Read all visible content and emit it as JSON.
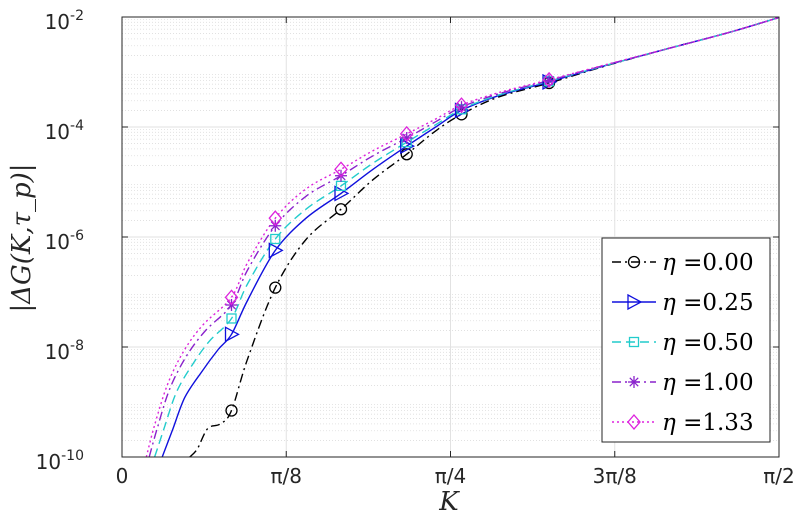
{
  "chart_data": {
    "type": "line",
    "ylabel": "|ΔG(K,τ_p)|",
    "xlabel": "K",
    "x_scale": "linear",
    "y_scale": "log",
    "xlim": [
      0,
      1.5708
    ],
    "ylim": [
      1e-10,
      0.01
    ],
    "grid": true,
    "minor_grid_y": true,
    "legend_position": "lower-right",
    "x_ticks": [
      {
        "value": 0,
        "label": "0"
      },
      {
        "value": 0.3927,
        "label": "π/8"
      },
      {
        "value": 0.7854,
        "label": "π/4"
      },
      {
        "value": 1.1781,
        "label": "3π/8"
      },
      {
        "value": 1.5708,
        "label": "π/2"
      }
    ],
    "y_ticks": [
      {
        "value": 1e-10,
        "base": "10",
        "exp": "-10"
      },
      {
        "value": 1e-08,
        "base": "10",
        "exp": "-8"
      },
      {
        "value": 1e-06,
        "base": "10",
        "exp": "-6"
      },
      {
        "value": 0.0001,
        "base": "10",
        "exp": "-4"
      },
      {
        "value": 0.01,
        "base": "10",
        "exp": "-2"
      }
    ],
    "series": [
      {
        "name": "η =0.00",
        "eta_label": "η",
        "value_label": "=0.00",
        "color": "#000000",
        "dash": "9,4,2,4",
        "marker": "circle",
        "marker_x": [
          0.2618,
          0.3665,
          0.5236,
          0.6807,
          0.8117,
          1.021
        ],
        "marker_y": [
          7e-10,
          1.2e-07,
          3.2e-06,
          3.2e-05,
          0.00017,
          0.00063
        ],
        "curve_x": [
          0.162,
          0.18,
          0.205,
          0.235,
          0.2618,
          0.3,
          0.3665,
          0.44,
          0.5236,
          0.6,
          0.6807,
          0.75,
          0.8117,
          0.9,
          1.021,
          1.15,
          1.3,
          1.45,
          1.5708
        ],
        "curve_y": [
          1e-10,
          1.4e-10,
          3.3e-10,
          4e-10,
          7e-10,
          6e-09,
          1.2e-07,
          9e-07,
          3.2e-06,
          1.1e-05,
          3.2e-05,
          8.5e-05,
          0.00017,
          0.00035,
          0.00063,
          0.00125,
          0.0026,
          0.0052,
          0.0098
        ]
      },
      {
        "name": "η =0.25",
        "eta_label": "η",
        "value_label": "=0.25",
        "color": "#1010dd",
        "dash": "",
        "marker": "triangle-right",
        "marker_x": [
          0.2618,
          0.3665,
          0.5236,
          0.6807,
          0.8117,
          1.021
        ],
        "marker_y": [
          1.7e-08,
          5.7e-07,
          6.2e-06,
          4.5e-05,
          0.0002,
          0.00066
        ],
        "curve_x": [
          0.096,
          0.12,
          0.15,
          0.19,
          0.23,
          0.2618,
          0.3,
          0.3665,
          0.44,
          0.5236,
          0.6,
          0.6807,
          0.75,
          0.8117,
          0.9,
          1.021,
          1.15,
          1.3,
          1.45,
          1.5708
        ],
        "curve_y": [
          1e-10,
          3e-10,
          1.2e-09,
          3.5e-09,
          9e-09,
          1.7e-08,
          7e-08,
          5.7e-07,
          2.2e-06,
          6.2e-06,
          1.7e-05,
          4.5e-05,
          0.0001,
          0.0002,
          0.00037,
          0.00066,
          0.00127,
          0.0026,
          0.0052,
          0.0098
        ]
      },
      {
        "name": "η =0.50",
        "eta_label": "η",
        "value_label": "=0.50",
        "color": "#22cccc",
        "dash": "9,5",
        "marker": "square",
        "marker_x": [
          0.2618,
          0.3665,
          0.5236,
          0.6807,
          0.8117,
          1.021
        ],
        "marker_y": [
          3.3e-08,
          9.2e-07,
          8.5e-06,
          5.3e-05,
          0.00021,
          0.00068
        ],
        "curve_x": [
          0.078,
          0.1,
          0.13,
          0.17,
          0.21,
          0.2618,
          0.3,
          0.3665,
          0.44,
          0.5236,
          0.6,
          0.6807,
          0.75,
          0.8117,
          0.9,
          1.021,
          1.15,
          1.3,
          1.45,
          1.5708
        ],
        "curve_y": [
          1e-10,
          3.2e-10,
          1.5e-09,
          5e-09,
          1.3e-08,
          3.3e-08,
          1.4e-07,
          9.2e-07,
          3.2e-06,
          8.5e-06,
          2.2e-05,
          5.3e-05,
          0.00011,
          0.00021,
          0.00038,
          0.00068,
          0.00128,
          0.0026,
          0.0052,
          0.0098
        ]
      },
      {
        "name": "η =1.00",
        "eta_label": "η",
        "value_label": "=1.00",
        "color": "#8a22cc",
        "dash": "9,4,2,4",
        "marker": "asterisk",
        "marker_x": [
          0.2618,
          0.3665,
          0.5236,
          0.6807,
          0.8117,
          1.021
        ],
        "marker_y": [
          5.8e-08,
          1.6e-06,
          1.3e-05,
          6.3e-05,
          0.00023,
          0.0007
        ],
        "curve_x": [
          0.065,
          0.085,
          0.115,
          0.155,
          0.2,
          0.2618,
          0.3,
          0.3665,
          0.44,
          0.5236,
          0.6,
          0.6807,
          0.75,
          0.8117,
          0.9,
          1.021,
          1.15,
          1.3,
          1.45,
          1.5708
        ],
        "curve_y": [
          1e-10,
          3.5e-10,
          1.8e-09,
          7e-09,
          2e-08,
          5.8e-08,
          2.5e-07,
          1.6e-06,
          5.5e-06,
          1.3e-05,
          3e-05,
          6.3e-05,
          0.000125,
          0.00023,
          0.0004,
          0.0007,
          0.0013,
          0.0026,
          0.0052,
          0.0098
        ]
      },
      {
        "name": "η =1.33",
        "eta_label": "η",
        "value_label": "=1.33",
        "color": "#dd22dd",
        "dash": "2,3",
        "marker": "diamond",
        "marker_x": [
          0.2618,
          0.3665,
          0.5236,
          0.6807,
          0.8117,
          1.021
        ],
        "marker_y": [
          8e-08,
          2.2e-06,
          1.7e-05,
          7.5e-05,
          0.00025,
          0.00072
        ],
        "curve_x": [
          0.058,
          0.078,
          0.11,
          0.15,
          0.195,
          0.2618,
          0.3,
          0.3665,
          0.44,
          0.5236,
          0.6,
          0.6807,
          0.75,
          0.8117,
          0.9,
          1.021,
          1.15,
          1.3,
          1.45,
          1.5708
        ],
        "curve_y": [
          1e-10,
          3.8e-10,
          2.2e-09,
          9e-09,
          2.6e-08,
          8e-08,
          3.4e-07,
          2.2e-06,
          7.5e-06,
          1.7e-05,
          3.7e-05,
          7.5e-05,
          0.00014,
          0.00025,
          0.00042,
          0.00072,
          0.00132,
          0.0026,
          0.0052,
          0.0098
        ]
      }
    ]
  }
}
